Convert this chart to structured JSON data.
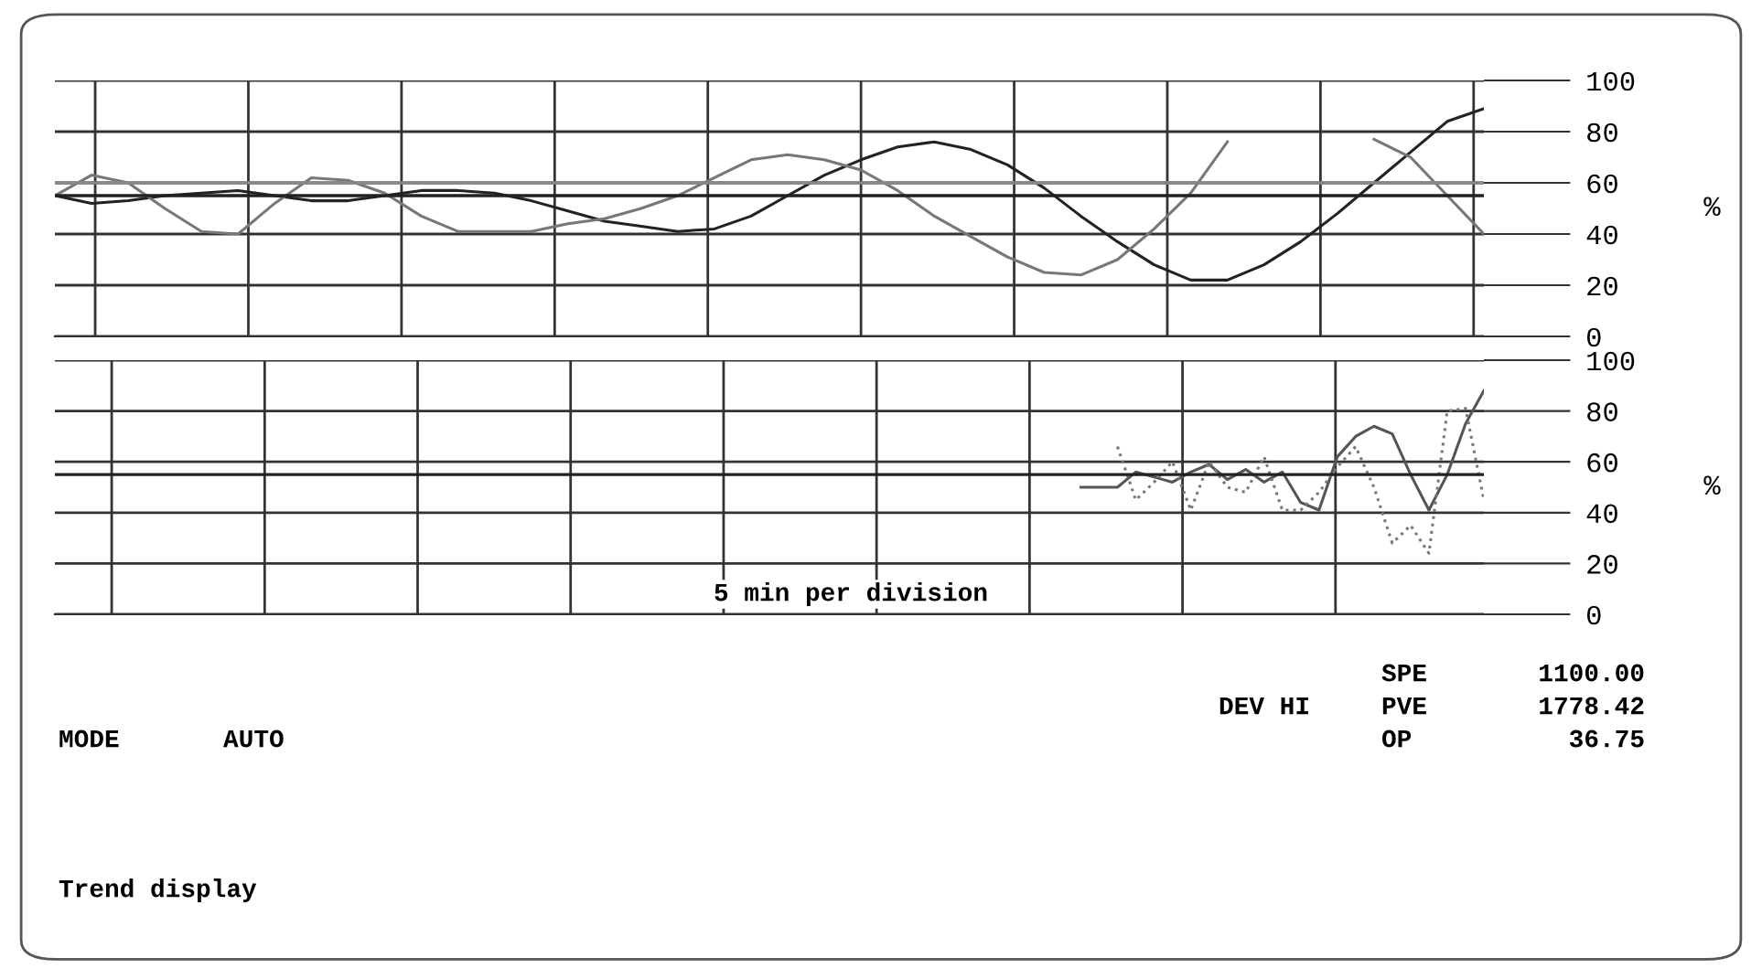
{
  "chart_data": [
    {
      "type": "line",
      "categories": [
        null,
        null,
        null,
        null,
        null,
        null,
        null,
        null,
        null,
        null,
        null,
        null,
        null,
        null,
        null,
        null,
        null,
        null,
        null,
        null,
        null,
        null,
        null,
        null,
        null,
        null,
        null,
        null,
        null,
        null,
        null,
        null,
        null,
        null,
        null,
        null,
        null,
        null,
        null,
        null
      ],
      "series": [
        {
          "color": "#222222",
          "values": [
            55,
            52,
            53,
            55,
            56,
            57,
            55,
            53,
            53,
            55,
            57,
            57,
            56,
            53,
            49,
            45,
            43,
            41,
            42,
            47,
            55,
            63,
            69,
            74,
            76,
            73,
            67,
            58,
            47,
            37,
            28,
            22,
            22,
            28,
            37,
            48,
            60,
            72,
            84,
            89
          ]
        },
        {
          "color": "#777777",
          "values": [
            55,
            63,
            60,
            50,
            41,
            40,
            52,
            62,
            61,
            56,
            47,
            41,
            41,
            41,
            44,
            46,
            50,
            55,
            62,
            69,
            71,
            69,
            65,
            57,
            47,
            39,
            31,
            25,
            24,
            30,
            42,
            56,
            76,
            null,
            null,
            null,
            77,
            70,
            55,
            40
          ]
        }
      ],
      "ylim": [
        0,
        100
      ],
      "yticks": [
        0,
        20,
        40,
        60,
        80,
        100
      ],
      "ylabel": "%",
      "grid": true,
      "tick_labels": "y",
      "ref_lines": [
        {
          "axis": "y",
          "value": 60,
          "color": "#888888"
        },
        {
          "axis": "y",
          "value": 55,
          "color": "#222222"
        }
      ]
    },
    {
      "type": "line",
      "categories": [
        null,
        null,
        null,
        null,
        null,
        null,
        null,
        null,
        null,
        null,
        null,
        null,
        null,
        null,
        null,
        null,
        null,
        null,
        null,
        null,
        null,
        null,
        null,
        null,
        null,
        null,
        null,
        null,
        null,
        null,
        null,
        null,
        null,
        null,
        null,
        null,
        null,
        null,
        null,
        null,
        null,
        null,
        null,
        null,
        null,
        null,
        null,
        null,
        null,
        null,
        null,
        null,
        null,
        null,
        null,
        null,
        null,
        null,
        null,
        null,
        null,
        null,
        null,
        null,
        null,
        null,
        null,
        null,
        null,
        null,
        null,
        null,
        null,
        null,
        null,
        null,
        null,
        null,
        null
      ],
      "series": [
        {
          "color": "#555555",
          "line_style": "solid",
          "values": [
            null,
            null,
            null,
            null,
            null,
            null,
            null,
            null,
            null,
            null,
            null,
            null,
            null,
            null,
            null,
            null,
            null,
            null,
            null,
            null,
            null,
            null,
            null,
            null,
            null,
            null,
            null,
            null,
            null,
            null,
            null,
            null,
            null,
            null,
            null,
            null,
            null,
            null,
            null,
            null,
            null,
            null,
            null,
            null,
            null,
            null,
            null,
            null,
            null,
            null,
            null,
            null,
            null,
            null,
            null,
            null,
            50,
            50,
            50,
            56,
            54,
            52,
            56,
            59,
            53,
            57,
            52,
            56,
            44,
            41,
            62,
            70,
            74,
            71,
            55,
            41,
            55,
            75,
            88
          ]
        },
        {
          "color": "#777777",
          "line_style": "dotted",
          "values": [
            null,
            null,
            null,
            null,
            null,
            null,
            null,
            null,
            null,
            null,
            null,
            null,
            null,
            null,
            null,
            null,
            null,
            null,
            null,
            null,
            null,
            null,
            null,
            null,
            null,
            null,
            null,
            null,
            null,
            null,
            null,
            null,
            null,
            null,
            null,
            null,
            null,
            null,
            null,
            null,
            null,
            null,
            null,
            null,
            null,
            null,
            null,
            null,
            null,
            null,
            null,
            null,
            null,
            null,
            null,
            null,
            null,
            null,
            66,
            45,
            52,
            60,
            41,
            60,
            50,
            48,
            62,
            41,
            41,
            48,
            58,
            66,
            50,
            28,
            35,
            24,
            80,
            81,
            45
          ]
        }
      ],
      "ylim": [
        0,
        100
      ],
      "yticks": [
        0,
        20,
        40,
        60,
        80,
        100
      ],
      "ylabel": "%",
      "grid": true,
      "tick_labels": "y",
      "ref_lines": [
        {
          "axis": "y",
          "value": 55,
          "color": "#222222"
        }
      ],
      "annotations": [
        "5 min per division",
        "SPE",
        "1100.00",
        "DEV HI",
        "PVE",
        "1778.42",
        "MODE",
        "AUTO",
        "OP",
        "36.75",
        "Trend display"
      ]
    }
  ]
}
